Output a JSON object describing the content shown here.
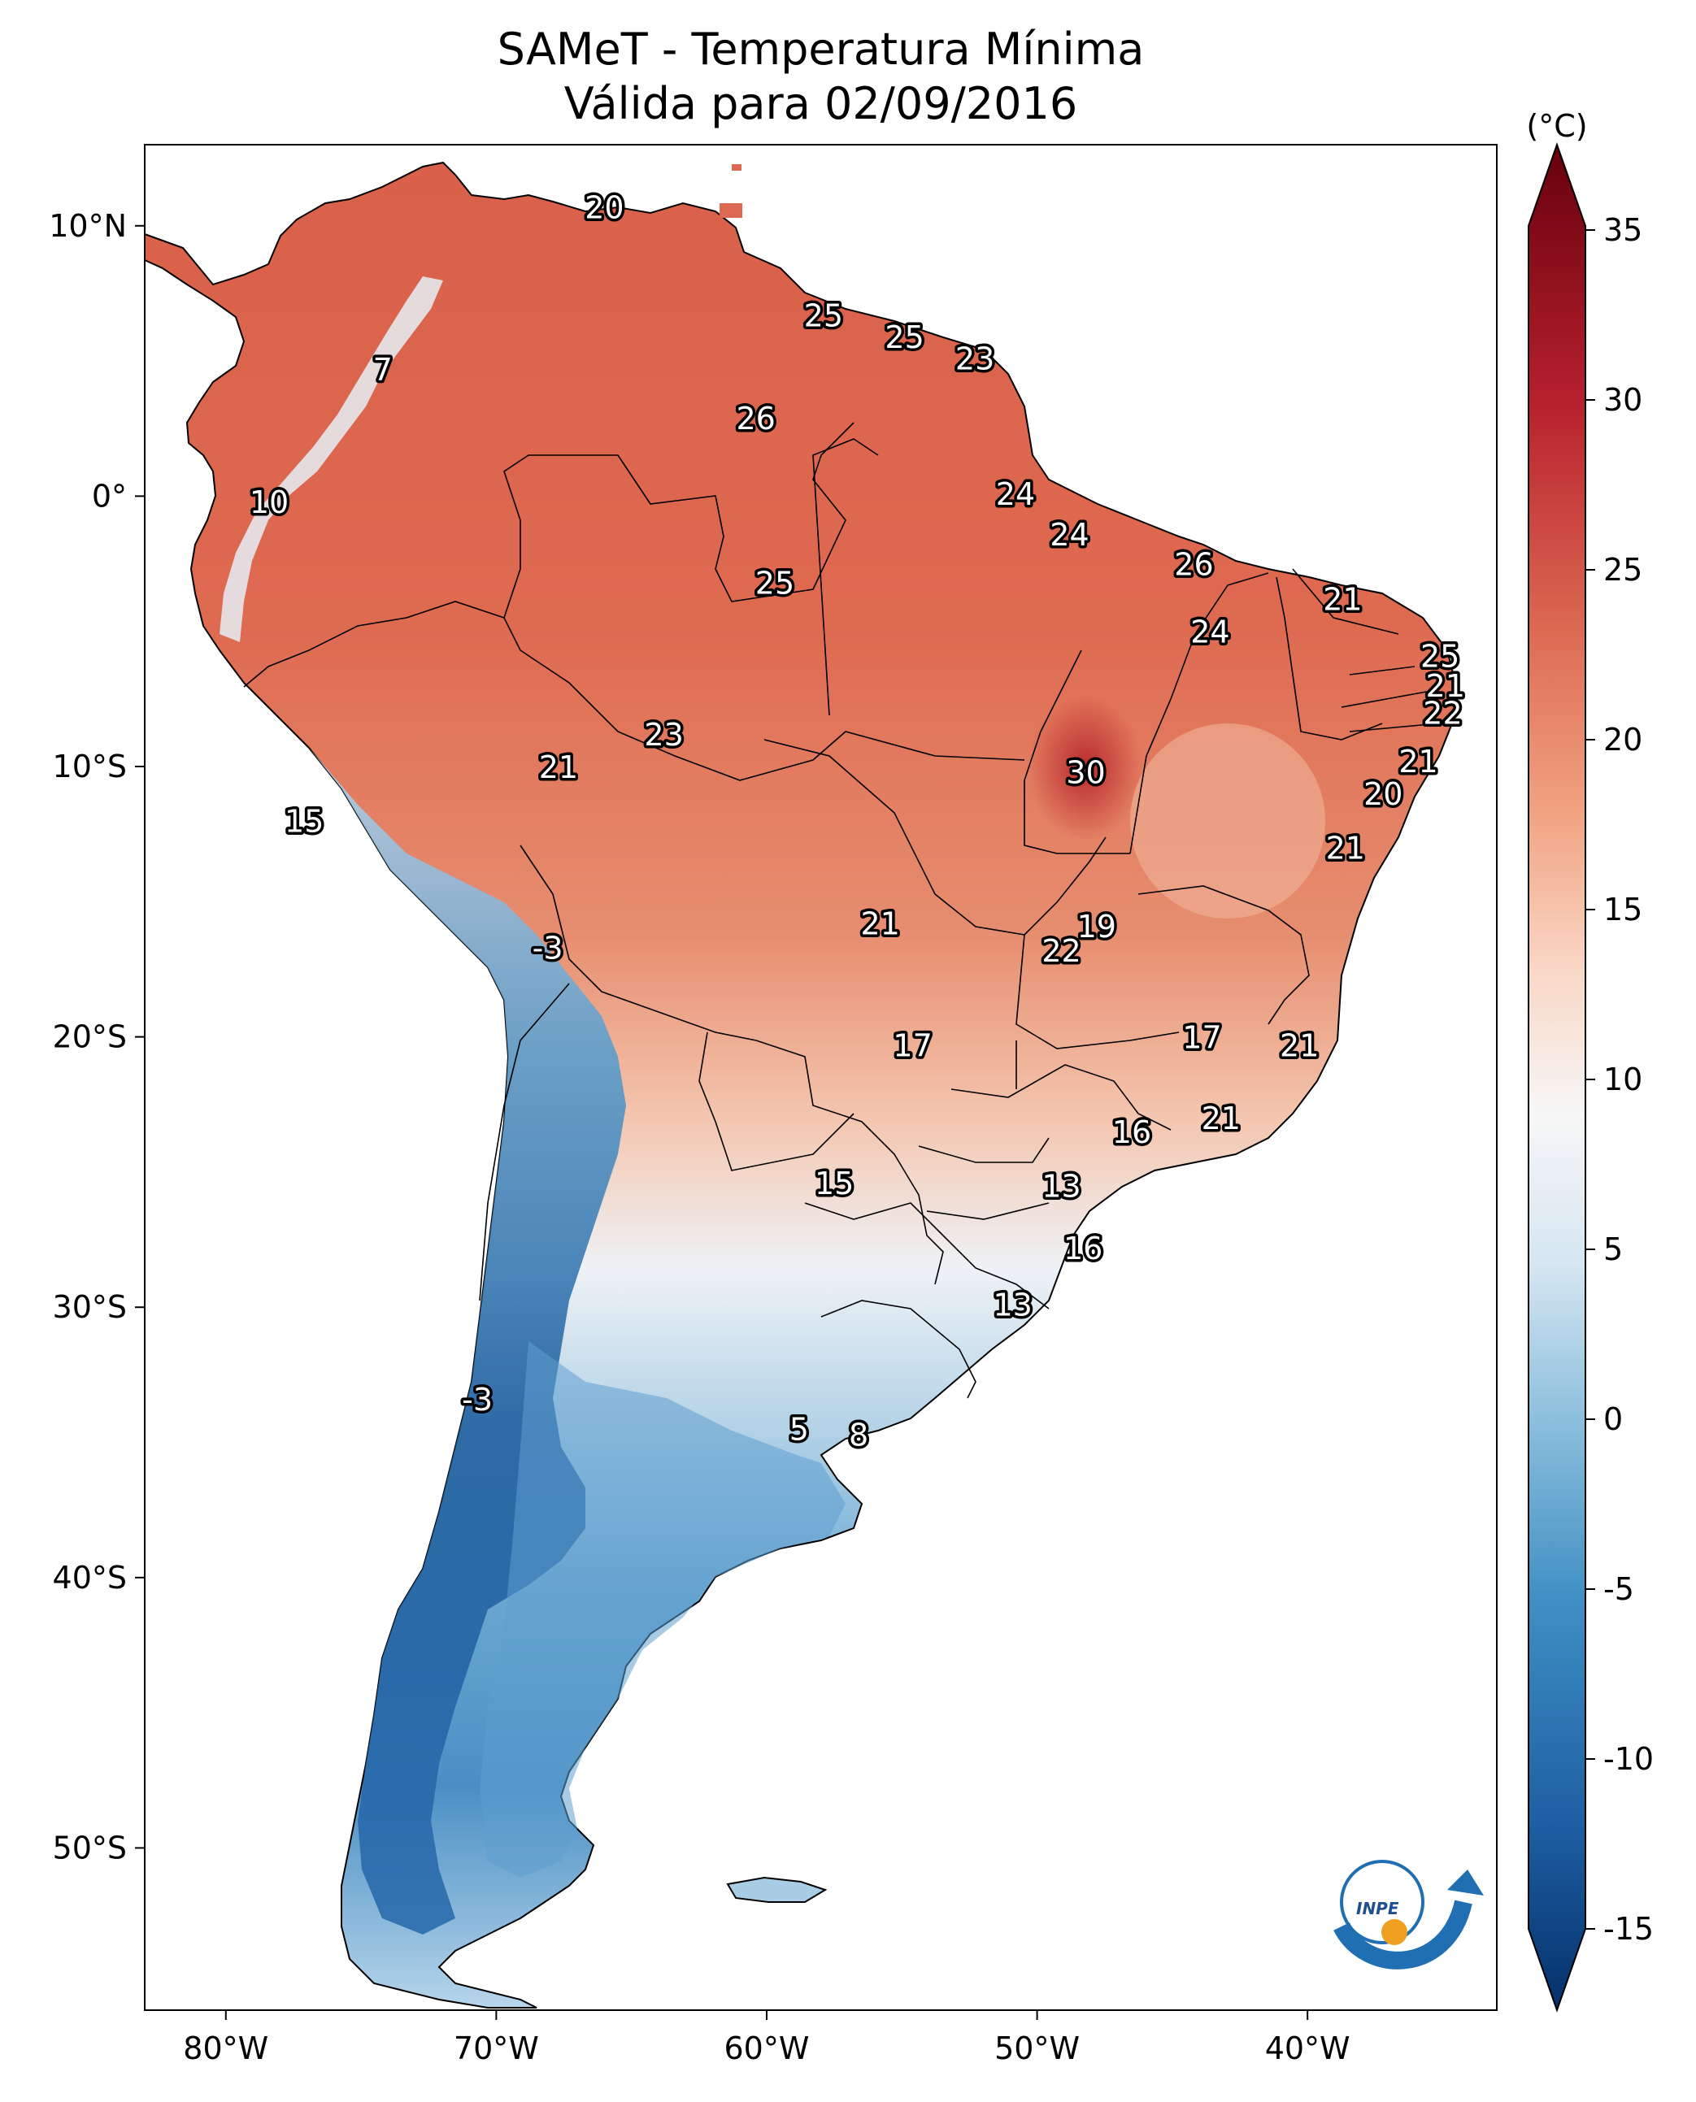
{
  "title": {
    "line1": "SAMeT - Temperatura Mínima",
    "line2": "Válida para 02/09/2016"
  },
  "colorbar": {
    "unit": "(°C)",
    "ticks": [
      "35",
      "30",
      "25",
      "20",
      "15",
      "10",
      "5",
      "0",
      "-5",
      "-10",
      "-15"
    ],
    "colors": [
      "#05306a",
      "#1d5fa3",
      "#3f8fc4",
      "#8fc1dd",
      "#d6e6f2",
      "#f7f7f7",
      "#f9d6c4",
      "#f2a484",
      "#dc6a53",
      "#b8212e",
      "#67000d"
    ]
  },
  "axes": {
    "lon_ticks": [
      "80°W",
      "70°W",
      "60°W",
      "50°W",
      "40°W"
    ],
    "lat_ticks": [
      "10°N",
      "0°",
      "10°S",
      "20°S",
      "30°S",
      "40°S",
      "50°S"
    ]
  },
  "logo": {
    "text": "INPE",
    "icon": "inpe-logo-icon"
  },
  "labels": [
    {
      "value": "20",
      "lon": -66.0,
      "lat": 10.6
    },
    {
      "value": "25",
      "lon": -57.9,
      "lat": 6.6
    },
    {
      "value": "25",
      "lon": -54.9,
      "lat": 5.8
    },
    {
      "value": "23",
      "lon": -52.3,
      "lat": 5.0
    },
    {
      "value": "7",
      "lon": -74.2,
      "lat": 4.6
    },
    {
      "value": "26",
      "lon": -60.4,
      "lat": 2.8
    },
    {
      "value": "10",
      "lon": -78.4,
      "lat": -0.3
    },
    {
      "value": "24",
      "lon": -50.8,
      "lat": -0.0
    },
    {
      "value": "24",
      "lon": -48.8,
      "lat": -1.5
    },
    {
      "value": "26",
      "lon": -44.2,
      "lat": -2.6
    },
    {
      "value": "21",
      "lon": -38.7,
      "lat": -3.9
    },
    {
      "value": "25",
      "lon": -59.7,
      "lat": -3.3
    },
    {
      "value": "24",
      "lon": -43.6,
      "lat": -5.1
    },
    {
      "value": "25",
      "lon": -35.1,
      "lat": -6.0
    },
    {
      "value": "21",
      "lon": -34.9,
      "lat": -7.1
    },
    {
      "value": "22",
      "lon": -35.0,
      "lat": -8.1
    },
    {
      "value": "23",
      "lon": -63.8,
      "lat": -8.9
    },
    {
      "value": "21",
      "lon": -67.7,
      "lat": -10.1
    },
    {
      "value": "30",
      "lon": -48.2,
      "lat": -10.3
    },
    {
      "value": "21",
      "lon": -35.9,
      "lat": -9.9
    },
    {
      "value": "20",
      "lon": -37.2,
      "lat": -11.1
    },
    {
      "value": "15",
      "lon": -77.1,
      "lat": -12.1
    },
    {
      "value": "21",
      "lon": -38.6,
      "lat": -13.1
    },
    {
      "value": "21",
      "lon": -55.8,
      "lat": -15.9
    },
    {
      "value": "19",
      "lon": -47.8,
      "lat": -16.0
    },
    {
      "value": "22",
      "lon": -49.1,
      "lat": -16.9
    },
    {
      "value": "-3",
      "lon": -68.1,
      "lat": -16.8
    },
    {
      "value": "17",
      "lon": -54.6,
      "lat": -20.4
    },
    {
      "value": "17",
      "lon": -43.9,
      "lat": -20.1
    },
    {
      "value": "21",
      "lon": -40.3,
      "lat": -20.4
    },
    {
      "value": "21",
      "lon": -43.2,
      "lat": -23.1
    },
    {
      "value": "16",
      "lon": -46.5,
      "lat": -23.6
    },
    {
      "value": "15",
      "lon": -57.5,
      "lat": -25.5
    },
    {
      "value": "13",
      "lon": -49.1,
      "lat": -25.6
    },
    {
      "value": "16",
      "lon": -48.3,
      "lat": -27.9
    },
    {
      "value": "13",
      "lon": -50.9,
      "lat": -30.0
    },
    {
      "value": "-3",
      "lon": -70.7,
      "lat": -33.5
    },
    {
      "value": "5",
      "lon": -58.8,
      "lat": -34.6
    },
    {
      "value": "8",
      "lon": -56.6,
      "lat": -34.8
    }
  ]
}
